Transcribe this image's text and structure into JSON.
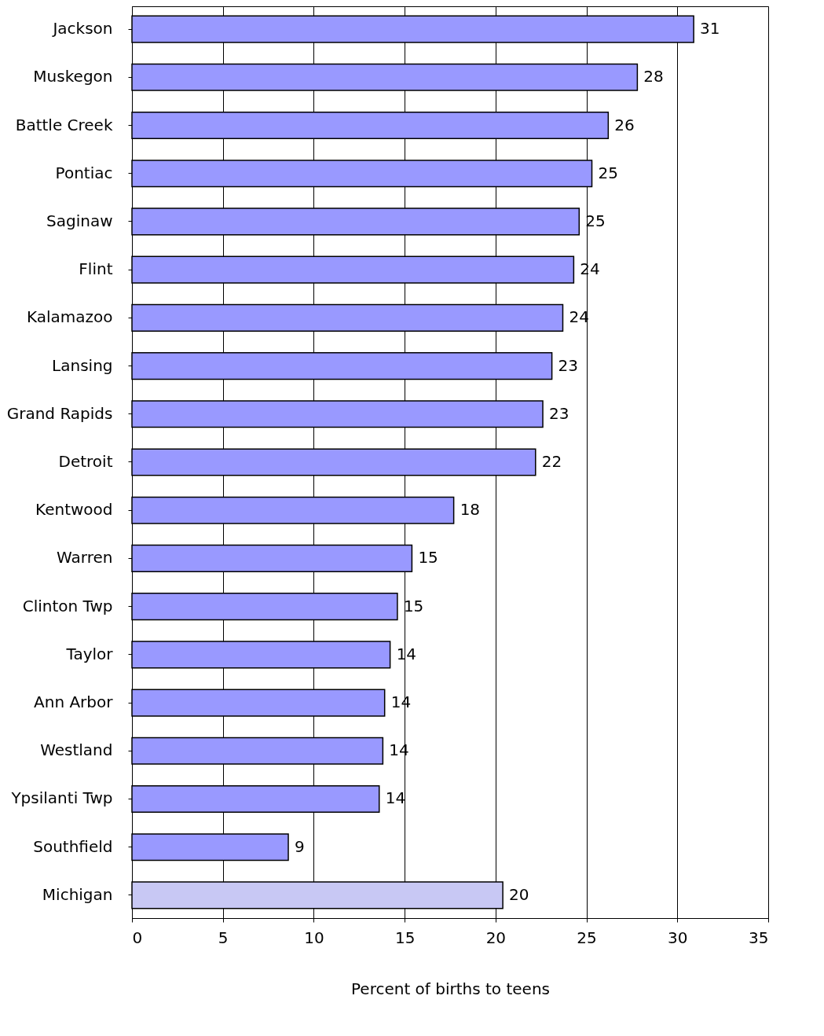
{
  "chart_data": {
    "type": "bar",
    "orientation": "horizontal",
    "xlabel": "Percent of births to teens",
    "categories": [
      "Jackson",
      "Muskegon",
      "Battle Creek",
      "Pontiac",
      "Saginaw",
      "Flint",
      "Kalamazoo",
      "Lansing",
      "Grand Rapids",
      "Detroit",
      "Kentwood",
      "Warren",
      "Clinton Twp",
      "Taylor",
      "Ann Arbor",
      "Westland",
      "Ypsilanti Twp",
      "Southfield",
      "Michigan"
    ],
    "values": [
      30.9,
      27.8,
      26.2,
      25.3,
      24.6,
      24.3,
      23.7,
      23.1,
      22.6,
      22.2,
      17.7,
      15.4,
      14.6,
      14.2,
      13.9,
      13.8,
      13.6,
      8.6,
      20.4
    ],
    "value_labels": [
      "31",
      "28",
      "26",
      "25",
      "25",
      "24",
      "24",
      "23",
      "23",
      "22",
      "18",
      "15",
      "15",
      "14",
      "14",
      "14",
      "14",
      "9",
      "20"
    ],
    "colors": [
      "#9999ff",
      "#9999ff",
      "#9999ff",
      "#9999ff",
      "#9999ff",
      "#9999ff",
      "#9999ff",
      "#9999ff",
      "#9999ff",
      "#9999ff",
      "#9999ff",
      "#9999ff",
      "#9999ff",
      "#9999ff",
      "#9999ff",
      "#9999ff",
      "#9999ff",
      "#9999ff",
      "#c8c8f4"
    ],
    "xlim": [
      0,
      35
    ],
    "xticks": [
      0,
      5,
      10,
      15,
      20,
      25,
      30,
      35
    ],
    "grid": "x"
  }
}
